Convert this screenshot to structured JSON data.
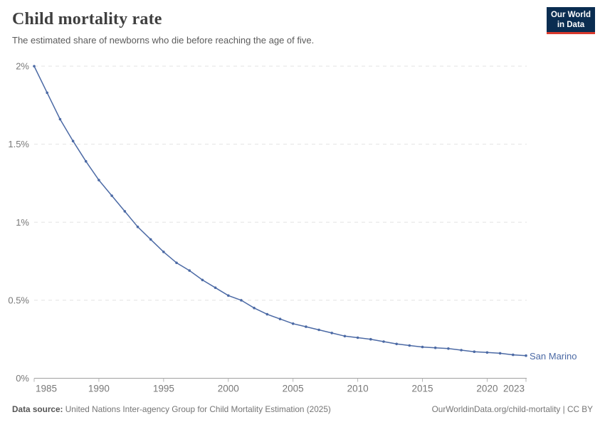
{
  "header": {
    "title": "Child mortality rate",
    "subtitle": "The estimated share of newborns who die before reaching the age of five."
  },
  "logo": {
    "line1": "Our World",
    "line2": "in Data",
    "bg_color": "#0a2d51",
    "accent_color": "#d93a2d"
  },
  "footer": {
    "source_label": "Data source:",
    "source_text": " United Nations Inter-agency Group for Child Mortality Estimation (2025)",
    "right_text": "OurWorldinData.org/child-mortality | CC BY"
  },
  "chart_data": {
    "type": "line",
    "title": "Child mortality rate",
    "subtitle": "The estimated share of newborns who die before reaching the age of five.",
    "xlabel": "",
    "ylabel": "",
    "unit": "%",
    "ylim": [
      0,
      2
    ],
    "xlim": [
      1985,
      2023
    ],
    "grid": "horizontal-dashed",
    "legend_position": "end-of-line-label",
    "line_color": "#4c6aa5",
    "grid_color": "#e3e3e3",
    "axis_color": "#a0a0a0",
    "tick_label_color": "#787878",
    "yticks": [
      {
        "v": 0,
        "label": "0%"
      },
      {
        "v": 0.5,
        "label": "0.5%"
      },
      {
        "v": 1,
        "label": "1%"
      },
      {
        "v": 1.5,
        "label": "1.5%"
      },
      {
        "v": 2,
        "label": "2%"
      }
    ],
    "xticks": [
      1985,
      1990,
      1995,
      2000,
      2005,
      2010,
      2015,
      2020,
      2023
    ],
    "x": [
      1985,
      1986,
      1987,
      1988,
      1989,
      1990,
      1991,
      1992,
      1993,
      1994,
      1995,
      1996,
      1997,
      1998,
      1999,
      2000,
      2001,
      2002,
      2003,
      2004,
      2005,
      2006,
      2007,
      2008,
      2009,
      2010,
      2011,
      2012,
      2013,
      2014,
      2015,
      2016,
      2017,
      2018,
      2019,
      2020,
      2021,
      2022,
      2023
    ],
    "series": [
      {
        "name": "San Marino",
        "values": [
          2.0,
          1.83,
          1.66,
          1.52,
          1.39,
          1.27,
          1.17,
          1.07,
          0.97,
          0.89,
          0.81,
          0.74,
          0.69,
          0.63,
          0.58,
          0.53,
          0.5,
          0.45,
          0.41,
          0.38,
          0.35,
          0.33,
          0.31,
          0.29,
          0.27,
          0.26,
          0.25,
          0.235,
          0.22,
          0.21,
          0.2,
          0.195,
          0.19,
          0.18,
          0.17,
          0.165,
          0.16,
          0.15,
          0.145
        ]
      }
    ]
  }
}
